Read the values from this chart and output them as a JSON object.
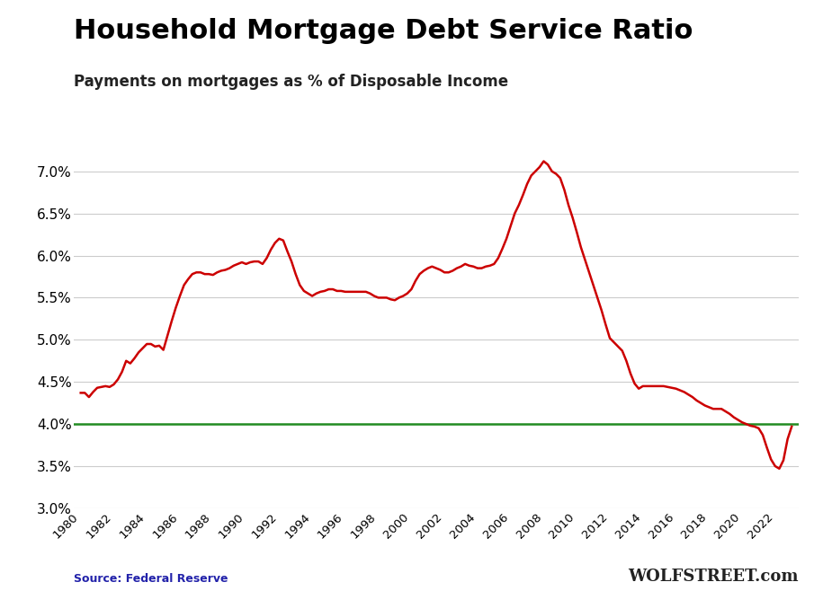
{
  "title": "Household Mortgage Debt Service Ratio",
  "subtitle": "Payments on mortgages as % of Disposable Income",
  "source": "Source: Federal Reserve",
  "watermark": "WOLFSTREET.com",
  "line_color": "#CC0000",
  "hline_color": "#228B22",
  "hline_value": 4.0,
  "background_color": "#ffffff",
  "grid_color": "#cccccc",
  "ylim": [
    3.0,
    7.35
  ],
  "yticks": [
    3.0,
    3.5,
    4.0,
    4.5,
    5.0,
    5.5,
    6.0,
    6.5,
    7.0
  ],
  "data": [
    [
      1980.0,
      4.37
    ],
    [
      1980.25,
      4.37
    ],
    [
      1980.5,
      4.32
    ],
    [
      1980.75,
      4.38
    ],
    [
      1981.0,
      4.43
    ],
    [
      1981.25,
      4.44
    ],
    [
      1981.5,
      4.45
    ],
    [
      1981.75,
      4.44
    ],
    [
      1982.0,
      4.47
    ],
    [
      1982.25,
      4.53
    ],
    [
      1982.5,
      4.62
    ],
    [
      1982.75,
      4.75
    ],
    [
      1983.0,
      4.72
    ],
    [
      1983.25,
      4.78
    ],
    [
      1983.5,
      4.85
    ],
    [
      1983.75,
      4.9
    ],
    [
      1984.0,
      4.95
    ],
    [
      1984.25,
      4.95
    ],
    [
      1984.5,
      4.92
    ],
    [
      1984.75,
      4.93
    ],
    [
      1985.0,
      4.88
    ],
    [
      1985.25,
      5.05
    ],
    [
      1985.5,
      5.22
    ],
    [
      1985.75,
      5.38
    ],
    [
      1986.0,
      5.52
    ],
    [
      1986.25,
      5.65
    ],
    [
      1986.5,
      5.72
    ],
    [
      1986.75,
      5.78
    ],
    [
      1987.0,
      5.8
    ],
    [
      1987.25,
      5.8
    ],
    [
      1987.5,
      5.78
    ],
    [
      1987.75,
      5.78
    ],
    [
      1988.0,
      5.77
    ],
    [
      1988.25,
      5.8
    ],
    [
      1988.5,
      5.82
    ],
    [
      1988.75,
      5.83
    ],
    [
      1989.0,
      5.85
    ],
    [
      1989.25,
      5.88
    ],
    [
      1989.5,
      5.9
    ],
    [
      1989.75,
      5.92
    ],
    [
      1990.0,
      5.9
    ],
    [
      1990.25,
      5.92
    ],
    [
      1990.5,
      5.93
    ],
    [
      1990.75,
      5.93
    ],
    [
      1991.0,
      5.9
    ],
    [
      1991.25,
      5.97
    ],
    [
      1991.5,
      6.07
    ],
    [
      1991.75,
      6.15
    ],
    [
      1992.0,
      6.2
    ],
    [
      1992.25,
      6.18
    ],
    [
      1992.5,
      6.05
    ],
    [
      1992.75,
      5.93
    ],
    [
      1993.0,
      5.78
    ],
    [
      1993.25,
      5.65
    ],
    [
      1993.5,
      5.58
    ],
    [
      1993.75,
      5.55
    ],
    [
      1994.0,
      5.52
    ],
    [
      1994.25,
      5.55
    ],
    [
      1994.5,
      5.57
    ],
    [
      1994.75,
      5.58
    ],
    [
      1995.0,
      5.6
    ],
    [
      1995.25,
      5.6
    ],
    [
      1995.5,
      5.58
    ],
    [
      1995.75,
      5.58
    ],
    [
      1996.0,
      5.57
    ],
    [
      1996.25,
      5.57
    ],
    [
      1996.5,
      5.57
    ],
    [
      1996.75,
      5.57
    ],
    [
      1997.0,
      5.57
    ],
    [
      1997.25,
      5.57
    ],
    [
      1997.5,
      5.55
    ],
    [
      1997.75,
      5.52
    ],
    [
      1998.0,
      5.5
    ],
    [
      1998.25,
      5.5
    ],
    [
      1998.5,
      5.5
    ],
    [
      1998.75,
      5.48
    ],
    [
      1999.0,
      5.47
    ],
    [
      1999.25,
      5.5
    ],
    [
      1999.5,
      5.52
    ],
    [
      1999.75,
      5.55
    ],
    [
      2000.0,
      5.6
    ],
    [
      2000.25,
      5.7
    ],
    [
      2000.5,
      5.78
    ],
    [
      2000.75,
      5.82
    ],
    [
      2001.0,
      5.85
    ],
    [
      2001.25,
      5.87
    ],
    [
      2001.5,
      5.85
    ],
    [
      2001.75,
      5.83
    ],
    [
      2002.0,
      5.8
    ],
    [
      2002.25,
      5.8
    ],
    [
      2002.5,
      5.82
    ],
    [
      2002.75,
      5.85
    ],
    [
      2003.0,
      5.87
    ],
    [
      2003.25,
      5.9
    ],
    [
      2003.5,
      5.88
    ],
    [
      2003.75,
      5.87
    ],
    [
      2004.0,
      5.85
    ],
    [
      2004.25,
      5.85
    ],
    [
      2004.5,
      5.87
    ],
    [
      2004.75,
      5.88
    ],
    [
      2005.0,
      5.9
    ],
    [
      2005.25,
      5.97
    ],
    [
      2005.5,
      6.08
    ],
    [
      2005.75,
      6.2
    ],
    [
      2006.0,
      6.35
    ],
    [
      2006.25,
      6.5
    ],
    [
      2006.5,
      6.6
    ],
    [
      2006.75,
      6.72
    ],
    [
      2007.0,
      6.85
    ],
    [
      2007.25,
      6.95
    ],
    [
      2007.5,
      7.0
    ],
    [
      2007.75,
      7.05
    ],
    [
      2008.0,
      7.12
    ],
    [
      2008.25,
      7.08
    ],
    [
      2008.5,
      7.0
    ],
    [
      2008.75,
      6.97
    ],
    [
      2009.0,
      6.92
    ],
    [
      2009.25,
      6.78
    ],
    [
      2009.5,
      6.6
    ],
    [
      2009.75,
      6.45
    ],
    [
      2010.0,
      6.28
    ],
    [
      2010.25,
      6.1
    ],
    [
      2010.5,
      5.95
    ],
    [
      2010.75,
      5.8
    ],
    [
      2011.0,
      5.65
    ],
    [
      2011.25,
      5.5
    ],
    [
      2011.5,
      5.35
    ],
    [
      2011.75,
      5.18
    ],
    [
      2012.0,
      5.02
    ],
    [
      2012.25,
      4.97
    ],
    [
      2012.5,
      4.92
    ],
    [
      2012.75,
      4.87
    ],
    [
      2013.0,
      4.75
    ],
    [
      2013.25,
      4.6
    ],
    [
      2013.5,
      4.48
    ],
    [
      2013.75,
      4.42
    ],
    [
      2014.0,
      4.45
    ],
    [
      2014.25,
      4.45
    ],
    [
      2014.5,
      4.45
    ],
    [
      2014.75,
      4.45
    ],
    [
      2015.0,
      4.45
    ],
    [
      2015.25,
      4.45
    ],
    [
      2015.5,
      4.44
    ],
    [
      2015.75,
      4.43
    ],
    [
      2016.0,
      4.42
    ],
    [
      2016.25,
      4.4
    ],
    [
      2016.5,
      4.38
    ],
    [
      2016.75,
      4.35
    ],
    [
      2017.0,
      4.32
    ],
    [
      2017.25,
      4.28
    ],
    [
      2017.5,
      4.25
    ],
    [
      2017.75,
      4.22
    ],
    [
      2018.0,
      4.2
    ],
    [
      2018.25,
      4.18
    ],
    [
      2018.5,
      4.18
    ],
    [
      2018.75,
      4.18
    ],
    [
      2019.0,
      4.15
    ],
    [
      2019.25,
      4.12
    ],
    [
      2019.5,
      4.08
    ],
    [
      2019.75,
      4.05
    ],
    [
      2020.0,
      4.02
    ],
    [
      2020.25,
      4.0
    ],
    [
      2020.5,
      3.98
    ],
    [
      2020.75,
      3.97
    ],
    [
      2021.0,
      3.95
    ],
    [
      2021.25,
      3.87
    ],
    [
      2021.5,
      3.72
    ],
    [
      2021.75,
      3.58
    ],
    [
      2022.0,
      3.5
    ],
    [
      2022.25,
      3.47
    ],
    [
      2022.5,
      3.57
    ],
    [
      2022.75,
      3.82
    ],
    [
      2023.0,
      3.97
    ]
  ],
  "xtick_years": [
    1980,
    1982,
    1984,
    1986,
    1988,
    1990,
    1992,
    1994,
    1996,
    1998,
    2000,
    2002,
    2004,
    2006,
    2008,
    2010,
    2012,
    2014,
    2016,
    2018,
    2020,
    2022
  ],
  "xlim": [
    1979.6,
    2023.4
  ],
  "title_fontsize": 22,
  "subtitle_fontsize": 12,
  "source_fontsize": 9,
  "watermark_fontsize": 13
}
